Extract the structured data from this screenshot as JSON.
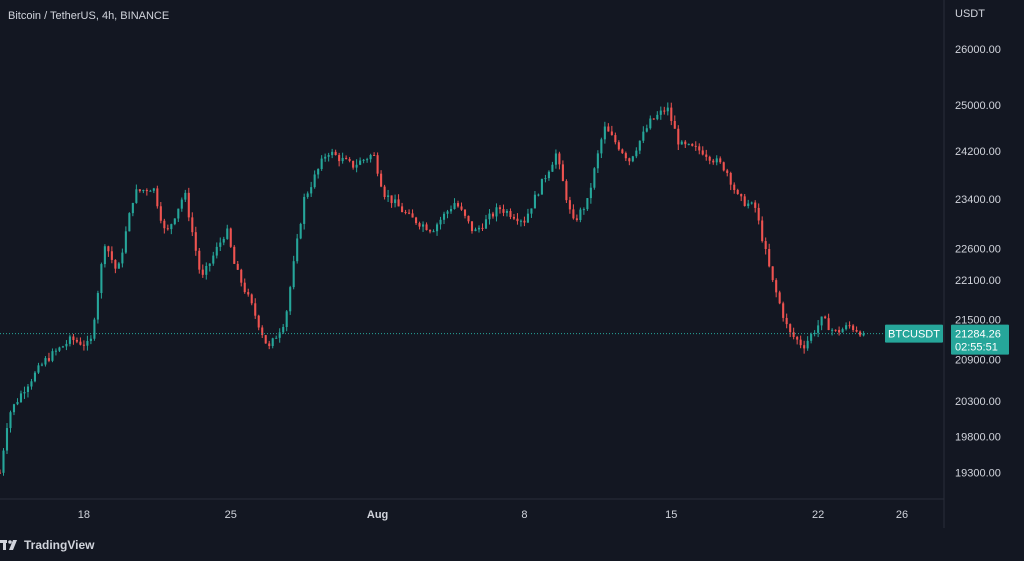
{
  "header": {
    "symbol_title": "Bitcoin / TetherUS, 4h, BINANCE"
  },
  "price_axis": {
    "unit": "USDT",
    "ticks": [
      26000,
      25000,
      24200,
      23400,
      22600,
      22100,
      21500,
      20900,
      20300,
      19800,
      19300
    ]
  },
  "time_axis": {
    "ticks": [
      {
        "label": "18",
        "day": 18
      },
      {
        "label": "25",
        "day": 25
      },
      {
        "label": "Aug",
        "day": 32
      },
      {
        "label": "8",
        "day": 39
      },
      {
        "label": "15",
        "day": 46
      },
      {
        "label": "22",
        "day": 53
      },
      {
        "label": "26",
        "day": 57
      }
    ]
  },
  "last_price": {
    "symbol": "BTCUSDT",
    "price": "21284.26",
    "countdown": "02:55:51",
    "value": 21284.26
  },
  "brand": {
    "name": "TradingView"
  },
  "colors": {
    "up": "#26a69a",
    "down": "#ef5350",
    "background": "#131722",
    "label": "#26a69a"
  },
  "chart_data": {
    "type": "candlestick",
    "interval": "4h",
    "x_unit": "day",
    "y_unit": "USDT",
    "ylim": [
      19000,
      26500
    ],
    "xlim": [
      14,
      59
    ],
    "grid": false,
    "series": [
      {
        "name": "BTCUSDT",
        "path": [
          [
            14,
            19300
          ],
          [
            14.4,
            20100
          ],
          [
            15.2,
            20500
          ],
          [
            16.2,
            20900
          ],
          [
            17.4,
            21200
          ],
          [
            18.3,
            21100
          ],
          [
            19.0,
            22700
          ],
          [
            19.6,
            22200
          ],
          [
            20.4,
            23500
          ],
          [
            21.3,
            23600
          ],
          [
            21.9,
            22800
          ],
          [
            22.8,
            23500
          ],
          [
            23.6,
            22100
          ],
          [
            24.8,
            22900
          ],
          [
            25.2,
            22300
          ],
          [
            26.0,
            21700
          ],
          [
            26.8,
            21050
          ],
          [
            27.6,
            21500
          ],
          [
            28.5,
            23400
          ],
          [
            29.6,
            24200
          ],
          [
            30.8,
            23950
          ],
          [
            31.8,
            24150
          ],
          [
            32.3,
            23500
          ],
          [
            33.5,
            23100
          ],
          [
            34.6,
            22900
          ],
          [
            35.7,
            23350
          ],
          [
            36.6,
            22850
          ],
          [
            37.8,
            23250
          ],
          [
            39.0,
            23050
          ],
          [
            40.5,
            24150
          ],
          [
            41.3,
            23000
          ],
          [
            42.0,
            23350
          ],
          [
            42.8,
            24600
          ],
          [
            44.0,
            24050
          ],
          [
            45.0,
            24700
          ],
          [
            45.8,
            24950
          ],
          [
            46.4,
            24300
          ],
          [
            47.5,
            24200
          ],
          [
            48.6,
            23900
          ],
          [
            49.2,
            23400
          ],
          [
            50.0,
            23250
          ],
          [
            50.8,
            22100
          ],
          [
            51.6,
            21300
          ],
          [
            52.3,
            21100
          ],
          [
            53.2,
            21500
          ],
          [
            53.8,
            21300
          ],
          [
            54.5,
            21400
          ],
          [
            55.2,
            21284.26
          ]
        ]
      }
    ]
  }
}
